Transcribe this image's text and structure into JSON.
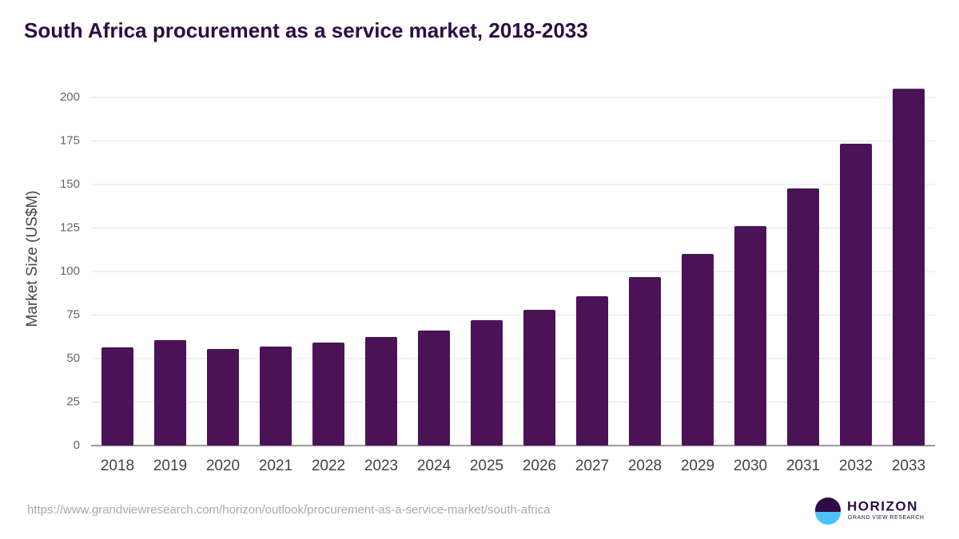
{
  "chart_data": {
    "type": "bar",
    "title": "South Africa procurement as a service market, 2018-2033",
    "y_label": "Market Size (US$M)",
    "categories": [
      "2018",
      "2019",
      "2020",
      "2021",
      "2022",
      "2023",
      "2024",
      "2025",
      "2026",
      "2027",
      "2028",
      "2029",
      "2030",
      "2031",
      "2032",
      "2033"
    ],
    "values": [
      56.4,
      60.6,
      55.5,
      56.9,
      59.2,
      62.4,
      66.1,
      72.0,
      78.0,
      85.8,
      96.8,
      110.1,
      126.1,
      147.7,
      173.4,
      205.0
    ],
    "color": "#4b1257",
    "ylim": [
      0,
      210
    ],
    "yticks": [
      0,
      25,
      50,
      75,
      100,
      125,
      150,
      175,
      200
    ],
    "grid": true
  },
  "footer": {
    "url": "https://www.grandviewresearch.com/horizon/outlook/procurement-as-a-service-market/south-africa",
    "logo_text": "HORIZON",
    "logo_subtext": "GRAND VIEW RESEARCH"
  }
}
